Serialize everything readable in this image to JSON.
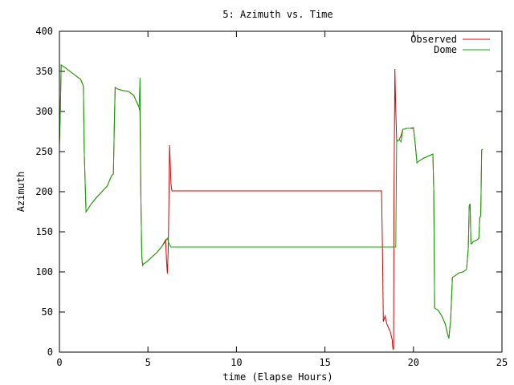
{
  "chart_data": {
    "type": "line",
    "title": "5: Azimuth vs. Time",
    "xlabel": "time (Elapse Hours)",
    "ylabel": "Azimuth",
    "xlim": [
      0,
      25
    ],
    "ylim": [
      0,
      400
    ],
    "xticks": [
      0,
      5,
      10,
      15,
      20,
      25
    ],
    "yticks": [
      0,
      50,
      100,
      150,
      200,
      250,
      300,
      350,
      400
    ],
    "grid": false,
    "legend_position": "top-right",
    "series": [
      {
        "name": "Observed",
        "color": "#e00000",
        "x": [
          0.0,
          0.05,
          0.1,
          0.3,
          0.6,
          0.9,
          1.2,
          1.35,
          1.4,
          1.5,
          1.6,
          1.8,
          2.1,
          2.4,
          2.7,
          2.85,
          2.95,
          3.05,
          3.1,
          3.15,
          3.3,
          3.6,
          3.9,
          4.2,
          4.4,
          4.5,
          4.55,
          4.6,
          4.65,
          4.7,
          4.75,
          4.9,
          5.2,
          5.5,
          5.8,
          6.0,
          6.05,
          6.1,
          6.15,
          6.2,
          6.22,
          6.25,
          6.3,
          6.35,
          6.4,
          7.0,
          10.0,
          14.0,
          18.0,
          18.2,
          18.25,
          18.3,
          18.4,
          18.5,
          18.6,
          18.7,
          18.8,
          18.82,
          18.85,
          18.88,
          18.9,
          18.95,
          19.0,
          19.05,
          19.1,
          19.2,
          19.3,
          19.4,
          19.5,
          19.6,
          19.8,
          20.0,
          20.1,
          20.2,
          20.3,
          20.6,
          20.9,
          21.1,
          21.15,
          21.2,
          21.4,
          21.6,
          21.8,
          21.9,
          22.0,
          22.1,
          22.2,
          22.4,
          22.6,
          22.8,
          23.0,
          23.1,
          23.15,
          23.2,
          23.25,
          23.3,
          23.35,
          23.4,
          23.6,
          23.7,
          23.75,
          23.8,
          23.85,
          23.9
        ],
        "values": [
          258,
          300,
          358,
          355,
          350,
          345,
          340,
          332,
          250,
          175,
          178,
          185,
          193,
          200,
          207,
          215,
          220,
          222,
          280,
          330,
          328,
          326,
          325,
          320,
          310,
          305,
          300,
          195,
          120,
          108,
          110,
          112,
          118,
          124,
          132,
          140,
          115,
          98,
          130,
          210,
          258,
          240,
          210,
          201,
          201,
          201,
          201,
          201,
          201,
          201,
          130,
          38,
          45,
          35,
          30,
          25,
          15,
          8,
          3,
          5,
          200,
          353,
          300,
          265,
          263,
          265,
          270,
          278,
          278,
          279,
          279,
          279,
          260,
          236,
          238,
          242,
          245,
          247,
          200,
          55,
          52,
          45,
          35,
          25,
          17,
          40,
          93,
          96,
          99,
          100,
          103,
          130,
          182,
          185,
          135,
          135,
          137,
          138,
          140,
          142,
          168,
          170,
          252,
          253
        ]
      },
      {
        "name": "Dome",
        "color": "#00b000",
        "x": [
          0.0,
          0.05,
          0.1,
          0.3,
          0.6,
          0.9,
          1.2,
          1.35,
          1.4,
          1.5,
          1.6,
          1.8,
          2.1,
          2.4,
          2.7,
          2.85,
          2.95,
          3.05,
          3.1,
          3.15,
          3.3,
          3.6,
          3.9,
          4.2,
          4.4,
          4.5,
          4.55,
          4.6,
          4.65,
          4.7,
          4.75,
          4.9,
          5.2,
          5.5,
          5.8,
          6.0,
          6.1,
          6.2,
          6.3,
          6.4,
          7.0,
          10.0,
          14.0,
          18.0,
          18.5,
          18.9,
          19.0,
          19.05,
          19.1,
          19.2,
          19.3,
          19.4,
          19.5,
          19.6,
          19.8,
          20.0,
          20.1,
          20.2,
          20.3,
          20.6,
          20.9,
          21.1,
          21.15,
          21.2,
          21.4,
          21.6,
          21.8,
          21.9,
          22.0,
          22.1,
          22.2,
          22.4,
          22.6,
          22.8,
          23.0,
          23.1,
          23.15,
          23.2,
          23.25,
          23.3,
          23.35,
          23.4,
          23.6,
          23.7,
          23.75,
          23.8,
          23.85,
          23.9
        ],
        "values": [
          258,
          300,
          358,
          355,
          350,
          345,
          340,
          332,
          250,
          175,
          178,
          185,
          193,
          200,
          207,
          215,
          220,
          222,
          280,
          330,
          328,
          326,
          325,
          320,
          310,
          305,
          342,
          195,
          120,
          108,
          110,
          112,
          118,
          124,
          132,
          138,
          142,
          135,
          131,
          131,
          131,
          131,
          131,
          131,
          131,
          131,
          131,
          265,
          263,
          265,
          262,
          278,
          278,
          279,
          279,
          280,
          260,
          236,
          238,
          242,
          245,
          247,
          200,
          55,
          52,
          45,
          35,
          25,
          17,
          40,
          93,
          96,
          99,
          100,
          103,
          130,
          182,
          185,
          135,
          135,
          137,
          138,
          140,
          142,
          168,
          170,
          252,
          253
        ]
      }
    ]
  }
}
